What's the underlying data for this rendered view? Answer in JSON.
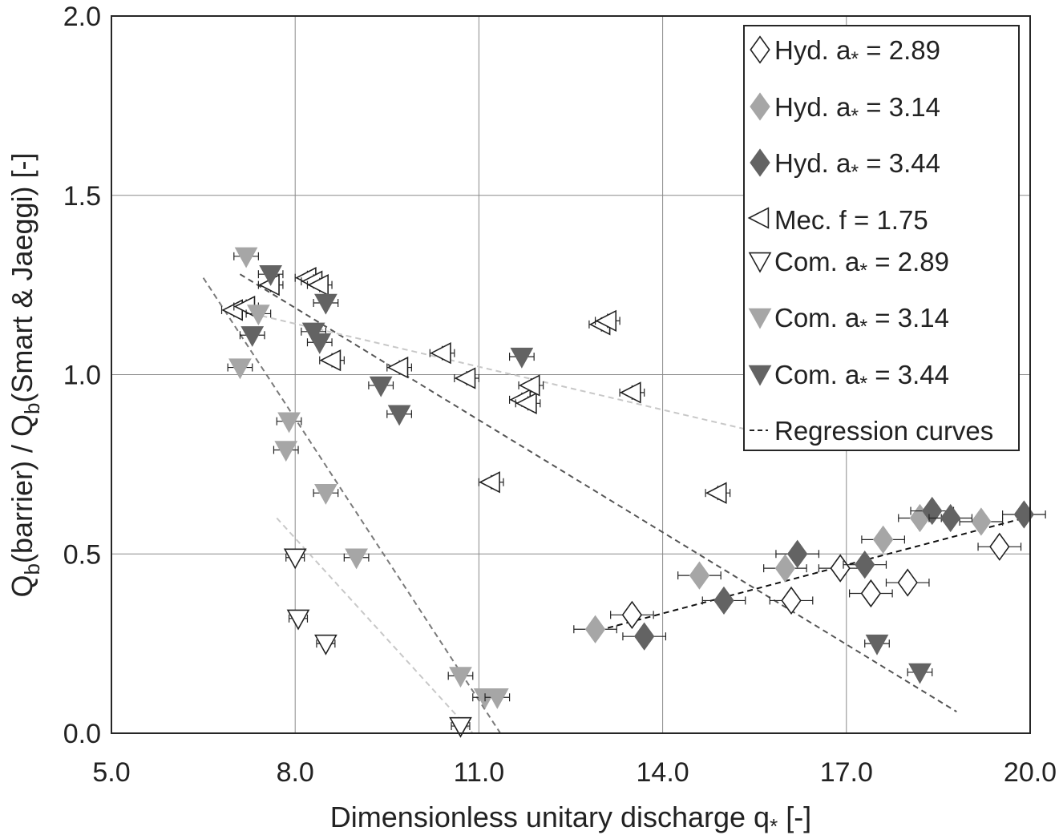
{
  "chart_data": {
    "type": "scatter",
    "xlabel": "Dimensionless unitary discharge q",
    "xlabel_sub": "*",
    "xlabel_tail": " [-]",
    "ylabel_parts": [
      "Q",
      "b",
      "(barrier) / Q",
      "b",
      "(Smart & Jaeggi) [-]"
    ],
    "xlim": [
      5,
      20
    ],
    "ylim": [
      0,
      2
    ],
    "xticks": [
      5,
      8,
      11,
      14,
      17,
      20
    ],
    "yticks": [
      0,
      0.5,
      1,
      1.5,
      2
    ],
    "xtick_labels": [
      "5.0",
      "8.0",
      "11.0",
      "14.0",
      "17.0",
      "20.0"
    ],
    "ytick_labels": [
      "0.0",
      "0.5",
      "1.0",
      "1.5",
      "2.0"
    ],
    "grid": true,
    "legend_position": "top-right",
    "series": [
      {
        "name_main": "Hyd. a",
        "name_sub": "*",
        "name_val": " = 2.89",
        "marker": "diamond",
        "fill": "#ffffff",
        "xerr": 0.35,
        "points": [
          [
            13.5,
            0.33
          ],
          [
            16.1,
            0.37
          ],
          [
            16.9,
            0.46
          ],
          [
            17.4,
            0.39
          ],
          [
            18.0,
            0.42
          ],
          [
            19.5,
            0.52
          ]
        ]
      },
      {
        "name_main": "Hyd. a",
        "name_sub": "*",
        "name_val": " = 3.14",
        "marker": "diamond",
        "fill": "#a6a6a6",
        "xerr": 0.35,
        "points": [
          [
            12.9,
            0.29
          ],
          [
            14.6,
            0.44
          ],
          [
            16.0,
            0.46
          ],
          [
            17.6,
            0.54
          ],
          [
            18.2,
            0.6
          ],
          [
            19.2,
            0.59
          ]
        ]
      },
      {
        "name_main": "Hyd. a",
        "name_sub": "*",
        "name_val": " = 3.44",
        "marker": "diamond",
        "fill": "#636363",
        "xerr": 0.35,
        "points": [
          [
            13.7,
            0.27
          ],
          [
            15.0,
            0.37
          ],
          [
            16.2,
            0.5
          ],
          [
            17.3,
            0.47
          ],
          [
            18.4,
            0.62
          ],
          [
            18.7,
            0.6
          ],
          [
            19.9,
            0.61
          ]
        ]
      },
      {
        "name_main": "Mec. f = 1.75",
        "name_sub": "",
        "name_val": "",
        "marker": "triangle-left",
        "fill": "#ffffff",
        "xerr": 0.2,
        "points": [
          [
            7.0,
            1.18
          ],
          [
            7.2,
            1.19
          ],
          [
            7.6,
            1.25
          ],
          [
            8.2,
            1.27
          ],
          [
            8.3,
            1.26
          ],
          [
            8.4,
            1.25
          ],
          [
            8.6,
            1.04
          ],
          [
            9.7,
            1.02
          ],
          [
            10.4,
            1.06
          ],
          [
            10.8,
            0.99
          ],
          [
            11.2,
            0.7
          ],
          [
            11.7,
            0.93
          ],
          [
            11.8,
            0.92
          ],
          [
            11.85,
            0.97
          ],
          [
            13.0,
            1.14
          ],
          [
            13.1,
            1.15
          ],
          [
            13.5,
            0.95
          ],
          [
            14.9,
            0.67
          ]
        ]
      },
      {
        "name_main": "Com. a",
        "name_sub": "*",
        "name_val": " = 2.89",
        "marker": "triangle-down",
        "fill": "#ffffff",
        "xerr": 0.15,
        "points": [
          [
            8.0,
            0.49
          ],
          [
            8.05,
            0.32
          ],
          [
            8.5,
            0.25
          ],
          [
            10.7,
            0.02
          ]
        ]
      },
      {
        "name_main": "Com. a",
        "name_sub": "*",
        "name_val": " = 3.14",
        "marker": "triangle-down",
        "fill": "#a6a6a6",
        "xerr": 0.2,
        "points": [
          [
            7.2,
            1.33
          ],
          [
            7.1,
            1.02
          ],
          [
            7.4,
            1.17
          ],
          [
            7.9,
            0.87
          ],
          [
            7.85,
            0.79
          ],
          [
            8.5,
            0.67
          ],
          [
            9.0,
            0.49
          ],
          [
            10.7,
            0.16
          ],
          [
            11.1,
            0.1
          ],
          [
            11.3,
            0.1
          ]
        ]
      },
      {
        "name_main": "Com. a",
        "name_sub": "*",
        "name_val": " = 3.44",
        "marker": "triangle-down",
        "fill": "#636363",
        "xerr": 0.2,
        "points": [
          [
            7.3,
            1.11
          ],
          [
            7.6,
            1.28
          ],
          [
            8.3,
            1.12
          ],
          [
            8.4,
            1.09
          ],
          [
            8.5,
            1.2
          ],
          [
            9.4,
            0.97
          ],
          [
            9.7,
            0.89
          ],
          [
            11.7,
            1.05
          ],
          [
            17.5,
            0.25
          ],
          [
            18.2,
            0.17
          ]
        ]
      }
    ],
    "regression": {
      "label": "Regression  curves",
      "lines": [
        {
          "x": [
            6.5,
            11.35
          ],
          "y": [
            1.27,
            0.0
          ],
          "color": "#7a7a7a"
        },
        {
          "x": [
            7.7,
            10.9
          ],
          "y": [
            0.6,
            0.0
          ],
          "color": "#c8c8c8"
        },
        {
          "x": [
            7.1,
            18.8
          ],
          "y": [
            1.28,
            0.06
          ],
          "color": "#555555"
        },
        {
          "x": [
            7.3,
            16.3
          ],
          "y": [
            1.17,
            0.81
          ],
          "color": "#c8c8c8"
        },
        {
          "x": [
            12.8,
            19.9
          ],
          "y": [
            0.28,
            0.6
          ],
          "color": "#111111"
        }
      ]
    }
  }
}
